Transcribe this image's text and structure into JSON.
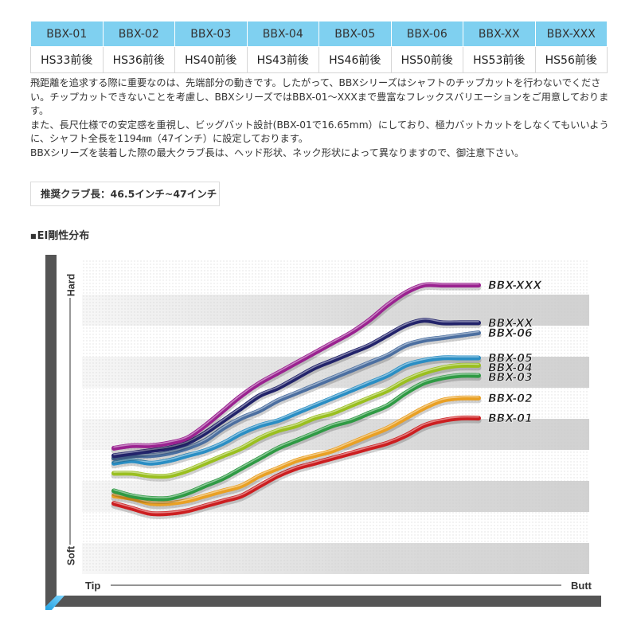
{
  "specs": {
    "models": [
      "BBX-01",
      "BBX-02",
      "BBX-03",
      "BBX-04",
      "BBX-05",
      "BBX-06",
      "BBX-XX",
      "BBX-XXX"
    ],
    "hs": [
      "HS33前後",
      "HS36前後",
      "HS40前後",
      "HS43前後",
      "HS46前後",
      "HS50前後",
      "HS53前後",
      "HS56前後"
    ]
  },
  "description": {
    "line1": "飛距離を追求する際に重要なのは、先端部分の動きです。したがって、BBXシリーズはシャフトのチップカットを行わないでくださ",
    "line2": "い。チップカットできないことを考慮し、BBXシリーズではBBX-01～XXXまで豊富なフレックスバリエーションをご用意しておりま",
    "line3": "す。",
    "line4": "また、長尺仕様での安定感を重視し、ビッグバット設計(BBX-01で16.65mm）にしており、極力バットカットをしなくてもいいよう",
    "line5": "に、シャフト全長を1194㎜（47インチ）に設定しております。",
    "line6": "BBXシリーズを装着した際の最大クラブ長は、ヘッド形状、ネック形状によって異なりますので、御注意下さい。"
  },
  "recommended": "推奨クラブ長：46.5インチ~47インチ",
  "section_title": "EI剛性分布",
  "section_marker": "■",
  "chart_data": {
    "type": "line",
    "title": "EI剛性分布",
    "xlabel_left": "Tip",
    "xlabel_right": "Butt",
    "ylabel_top": "Hard",
    "ylabel_bottom": "Soft",
    "x": [
      0,
      5,
      10,
      15,
      20,
      25,
      30,
      35,
      40,
      45,
      50,
      55,
      60,
      65,
      70,
      75,
      80,
      85,
      90,
      95,
      100
    ],
    "ylim": [
      0,
      100
    ],
    "grid": true,
    "legend": "right-end labels",
    "series": [
      {
        "name": "BBX-XXX",
        "color": "#9a2290",
        "values": [
          34,
          35,
          35,
          36,
          38,
          43,
          49,
          55,
          60,
          64,
          68,
          72,
          76,
          80,
          85,
          91,
          96,
          99,
          99,
          99,
          99
        ]
      },
      {
        "name": "BBX-XX",
        "color": "#22236a",
        "values": [
          31,
          32,
          33,
          34,
          36,
          40,
          45,
          50,
          55,
          58,
          62,
          66,
          69,
          72,
          75,
          79,
          83,
          85,
          84,
          84,
          84
        ]
      },
      {
        "name": "BBX-06",
        "color": "#4c6fa0",
        "values": [
          30,
          31,
          31,
          32,
          34,
          37,
          42,
          46,
          49,
          53,
          56,
          59,
          62,
          65,
          68,
          71,
          75,
          77,
          78,
          79,
          80
        ]
      },
      {
        "name": "BBX-05",
        "color": "#2a8ec4",
        "values": [
          28,
          29,
          28,
          29,
          31,
          33,
          36,
          40,
          43,
          45,
          48,
          51,
          54,
          57,
          60,
          63,
          67,
          69,
          70,
          70,
          70
        ]
      },
      {
        "name": "BBX-04",
        "color": "#9abf1f",
        "values": [
          24,
          24,
          23,
          23,
          25,
          28,
          31,
          34,
          38,
          41,
          43,
          46,
          48,
          51,
          54,
          57,
          61,
          64,
          66,
          67,
          67
        ]
      },
      {
        "name": "BBX-03",
        "color": "#2f9a44",
        "values": [
          17,
          15,
          14,
          14,
          16,
          19,
          22,
          26,
          30,
          34,
          37,
          40,
          43,
          45,
          48,
          51,
          56,
          60,
          62,
          63,
          63
        ]
      },
      {
        "name": "BBX-02",
        "color": "#e9a024",
        "values": [
          15,
          14,
          12,
          12,
          13,
          15,
          17,
          19,
          23,
          26,
          29,
          31,
          33,
          36,
          39,
          42,
          46,
          50,
          53,
          54,
          54
        ]
      },
      {
        "name": "BBX-01",
        "color": "#cc1e20",
        "values": [
          12,
          10,
          8,
          8,
          9,
          11,
          13,
          15,
          19,
          23,
          26,
          28,
          30,
          32,
          34,
          36,
          39,
          43,
          45,
          46,
          46
        ]
      }
    ]
  }
}
